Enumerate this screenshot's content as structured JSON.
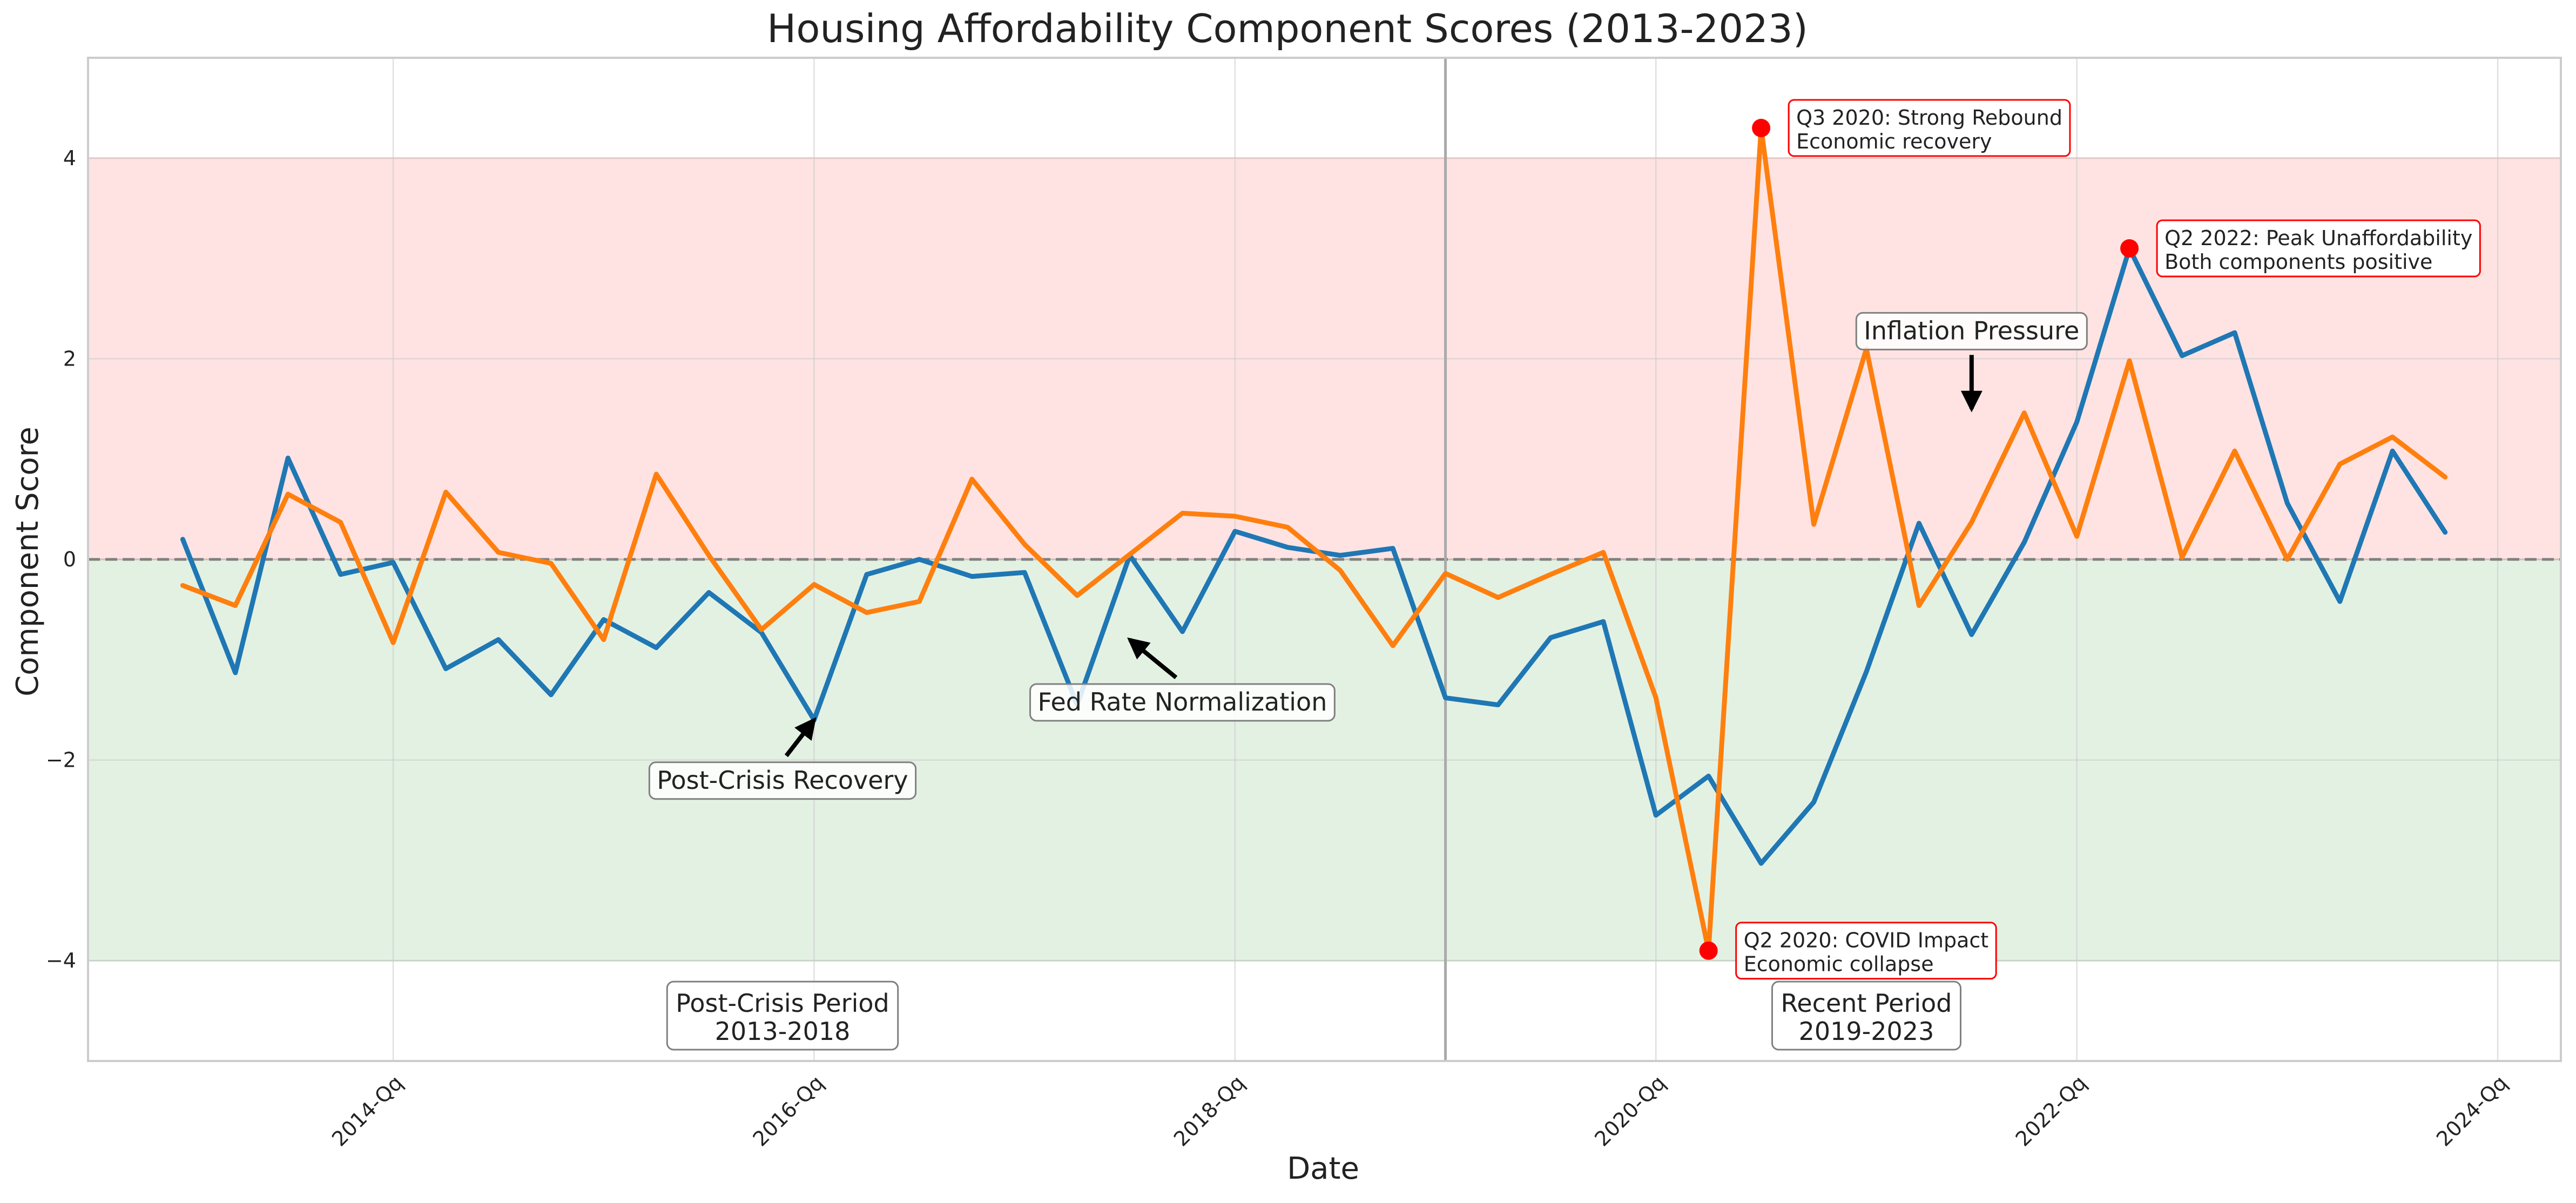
{
  "chart_data": {
    "type": "line",
    "title": "Housing Affordability Component Scores (2013-2023)",
    "xlabel": "Date",
    "ylabel": "Component Score",
    "x_tick_labels": [
      "2014-Qq",
      "2016-Qq",
      "2018-Qq",
      "2020-Qq",
      "2022-Qq",
      "2024-Qq"
    ],
    "x_tick_years": [
      2014,
      2016,
      2018,
      2020,
      2022,
      2024
    ],
    "y_ticks": [
      -4,
      -2,
      0,
      2,
      4
    ],
    "y_tick_labels": [
      "−4",
      "−2",
      "0",
      "2",
      "4"
    ],
    "xlim": [
      2012.55,
      2024.3
    ],
    "ylim": [
      -5,
      5
    ],
    "grid": true,
    "x": [
      2013.0,
      2013.25,
      2013.5,
      2013.75,
      2014.0,
      2014.25,
      2014.5,
      2014.75,
      2015.0,
      2015.25,
      2015.5,
      2015.75,
      2016.0,
      2016.25,
      2016.5,
      2016.75,
      2017.0,
      2017.25,
      2017.5,
      2017.75,
      2018.0,
      2018.25,
      2018.5,
      2018.75,
      2019.0,
      2019.25,
      2019.5,
      2019.75,
      2020.0,
      2020.25,
      2020.5,
      2020.75,
      2021.0,
      2021.25,
      2021.5,
      2021.75,
      2022.0,
      2022.25,
      2022.5,
      2022.75,
      2023.0,
      2023.25,
      2023.5,
      2023.75
    ],
    "series": [
      {
        "color": "#1f77b4",
        "values": [
          0.2,
          -1.13,
          1.01,
          -0.15,
          -0.03,
          -1.09,
          -0.8,
          -1.35,
          -0.6,
          -0.88,
          -0.33,
          -0.73,
          -1.6,
          -0.15,
          0.0,
          -0.17,
          -0.13,
          -1.45,
          0.04,
          -0.72,
          0.28,
          0.12,
          0.04,
          0.11,
          -1.38,
          -1.45,
          -0.78,
          -0.62,
          -2.55,
          -2.16,
          -3.03,
          -2.42,
          -1.12,
          0.36,
          -0.75,
          0.17,
          1.37,
          3.1,
          2.03,
          2.26,
          0.56,
          -0.42,
          1.08,
          0.27
        ]
      },
      {
        "color": "#ff7f0e",
        "values": [
          -0.26,
          -0.46,
          0.65,
          0.37,
          -0.83,
          0.67,
          0.07,
          -0.04,
          -0.8,
          0.85,
          0.04,
          -0.7,
          -0.25,
          -0.53,
          -0.42,
          0.8,
          0.15,
          -0.36,
          0.05,
          0.46,
          0.43,
          0.32,
          -0.11,
          -0.86,
          -0.14,
          -0.38,
          -0.15,
          0.07,
          -1.38,
          -3.9,
          4.3,
          0.35,
          2.1,
          -0.46,
          0.37,
          1.46,
          0.23,
          1.98,
          0.02,
          1.08,
          0.0,
          0.95,
          1.22,
          0.82
        ]
      }
    ],
    "regions": [
      {
        "y_from": 0,
        "y_to": 4,
        "color": "#ff0000"
      },
      {
        "y_from": -4,
        "y_to": 0,
        "color": "#008000"
      }
    ],
    "reference_line_y": 0,
    "divider_x": 2019.0,
    "highlight_points": [
      {
        "x": 2020.25,
        "y": -3.9,
        "line1": "Q2 2020: COVID Impact",
        "line2": "Economic collapse"
      },
      {
        "x": 2020.5,
        "y": 4.3,
        "line1": "Q3 2020: Strong Rebound",
        "line2": "Economic recovery"
      },
      {
        "x": 2022.25,
        "y": 3.1,
        "line1": "Q2 2022: Peak Unaffordability",
        "line2": "Both components positive"
      }
    ],
    "arrow_annotations": [
      {
        "text": "Post-Crisis Recovery",
        "point": [
          2016.0,
          -1.6
        ],
        "text_at": [
          2015.85,
          -2.2
        ]
      },
      {
        "text": "Fed Rate Normalization",
        "point": [
          2017.5,
          -0.8
        ],
        "text_at": [
          2017.75,
          -1.42
        ]
      },
      {
        "text": "Inflation Pressure",
        "point": [
          2021.5,
          1.5
        ],
        "text_at": [
          2021.5,
          2.28
        ]
      }
    ],
    "period_labels": [
      {
        "line1": "Post-Crisis Period",
        "line2": "2013-2018",
        "x": 2015.85
      },
      {
        "line1": "Recent Period",
        "line2": "2019-2023",
        "x": 2021.0
      }
    ]
  }
}
